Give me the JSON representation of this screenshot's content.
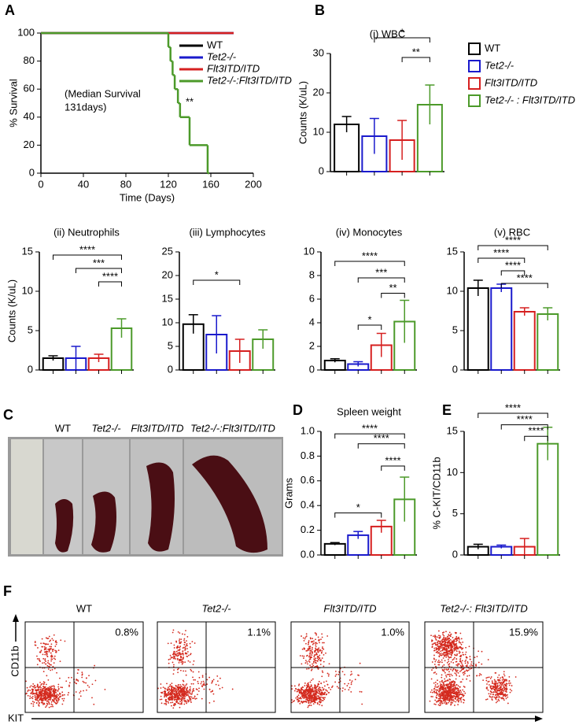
{
  "panel_labels": [
    "A",
    "B",
    "C",
    "D",
    "E",
    "F"
  ],
  "chart_data": [
    {
      "type": "step",
      "xlabel": "Time (Days)",
      "ylabel": "% Survival",
      "xlim": [
        0,
        200
      ],
      "ylim": [
        0,
        100
      ],
      "xticks": [
        0,
        40,
        80,
        120,
        160,
        200
      ],
      "yticks": [
        0,
        20,
        40,
        60,
        80,
        100
      ],
      "annotations": [
        "(Median Survival",
        "131days)",
        "**"
      ],
      "series": [
        {
          "name": "WT",
          "color": "#000000",
          "x": [
            0,
            180
          ],
          "values": [
            100,
            100
          ]
        },
        {
          "name": "Tet2-/-",
          "color": "#1a1acc",
          "x": [
            0,
            180
          ],
          "values": [
            100,
            100
          ]
        },
        {
          "name": "Flt3ITD/ITD",
          "color": "#d62020",
          "x": [
            0,
            180
          ],
          "values": [
            100,
            100
          ]
        },
        {
          "name": "Tet2-/-:Flt3ITD/ITD",
          "color": "#4c9a2a",
          "x": [
            0,
            120,
            122,
            124,
            126,
            129,
            131,
            140,
            157
          ],
          "values": [
            100,
            90,
            80,
            70,
            60,
            50,
            40,
            20,
            0
          ]
        }
      ]
    },
    {
      "type": "bar",
      "title": "(i) WBC",
      "ylabel": "Counts (K/uL)",
      "ylim": [
        0,
        30
      ],
      "yticks": [
        0,
        10,
        20,
        30
      ],
      "values": [
        12,
        9,
        8,
        17
      ],
      "errors": [
        2,
        4.5,
        5,
        5
      ],
      "colors": [
        "#000000",
        "#1a1acc",
        "#d62020",
        "#4c9a2a"
      ],
      "annotations": [
        "*",
        "**"
      ],
      "legend": [
        "WT",
        "Tet2-/-",
        "Flt3ITD/ITD",
        "Tet2-/- : Flt3ITD/ITD"
      ]
    },
    {
      "type": "bar",
      "title": "(ii) Neutrophils",
      "ylabel": "Counts (K/uL)",
      "ylim": [
        0,
        15
      ],
      "yticks": [
        0,
        5,
        10,
        15
      ],
      "values": [
        1.5,
        1.5,
        1.5,
        5.3
      ],
      "errors": [
        0.3,
        1.5,
        0.5,
        1.2
      ],
      "colors": [
        "#000000",
        "#1a1acc",
        "#d62020",
        "#4c9a2a"
      ],
      "annotations": [
        "****",
        "***",
        "****"
      ]
    },
    {
      "type": "bar",
      "title": "(iii) Lymphocytes",
      "ylim": [
        0,
        25
      ],
      "yticks": [
        0,
        5,
        10,
        15,
        20,
        25
      ],
      "values": [
        9.7,
        7.5,
        4,
        6.5
      ],
      "errors": [
        2,
        4,
        2.5,
        2
      ],
      "colors": [
        "#000000",
        "#1a1acc",
        "#d62020",
        "#4c9a2a"
      ],
      "annotations": [
        "*"
      ]
    },
    {
      "type": "bar",
      "title": "(iv) Monocytes",
      "ylim": [
        0,
        10
      ],
      "yticks": [
        0,
        2,
        4,
        6,
        8,
        10
      ],
      "values": [
        0.8,
        0.5,
        2.1,
        4.1
      ],
      "errors": [
        0.15,
        0.2,
        1,
        1.8
      ],
      "colors": [
        "#000000",
        "#1a1acc",
        "#d62020",
        "#4c9a2a"
      ],
      "annotations": [
        "****",
        "***",
        "**",
        "*"
      ]
    },
    {
      "type": "bar",
      "title": "(v) RBC",
      "ylim": [
        0,
        15
      ],
      "yticks": [
        0,
        5,
        10,
        15
      ],
      "values": [
        10.4,
        10.4,
        7.4,
        7.1
      ],
      "errors": [
        1,
        0.5,
        0.5,
        0.8
      ],
      "colors": [
        "#000000",
        "#1a1acc",
        "#d62020",
        "#4c9a2a"
      ],
      "annotations": [
        "****",
        "****",
        "****",
        "****"
      ]
    },
    {
      "type": "bar",
      "title": "Spleen weight",
      "ylabel": "Grams",
      "ylim": [
        0,
        1
      ],
      "yticks": [
        {
          "value": 0,
          "label": "0.0"
        },
        0.2,
        0.4,
        0.6,
        0.8,
        {
          "value": 1,
          "label": "1.0"
        }
      ],
      "values": [
        0.09,
        0.16,
        0.23,
        0.45
      ],
      "errors": [
        0.01,
        0.03,
        0.05,
        0.18
      ],
      "colors": [
        "#000000",
        "#1a1acc",
        "#d62020",
        "#4c9a2a"
      ],
      "annotations": [
        "****",
        "****",
        "****",
        "*"
      ]
    },
    {
      "type": "bar",
      "ylabel": "% C-KIT/CD11b",
      "ylim": [
        0,
        15
      ],
      "yticks": [
        0,
        5,
        10,
        15
      ],
      "values": [
        1,
        1,
        1,
        13.5
      ],
      "errors": [
        0.3,
        0.2,
        1,
        2
      ],
      "colors": [
        "#000000",
        "#1a1acc",
        "#d62020",
        "#4c9a2a"
      ],
      "annotations": [
        "****",
        "****",
        "****"
      ]
    }
  ],
  "photo_labels": [
    "WT",
    "Tet2-/-",
    "Flt3ITD/ITD",
    "Tet2-/-:Flt3ITD/ITD"
  ],
  "flow": {
    "ylabel": "CD11b",
    "xlabel": "KIT",
    "plots": [
      {
        "title": "WT",
        "percent": "0.8%"
      },
      {
        "title": "Tet2-/-",
        "percent": "1.1%"
      },
      {
        "title": "Flt3ITD/ITD",
        "percent": "1.0%"
      },
      {
        "title": "Tet2-/-: Flt3ITD/ITD",
        "percent": "15.9%"
      }
    ]
  }
}
